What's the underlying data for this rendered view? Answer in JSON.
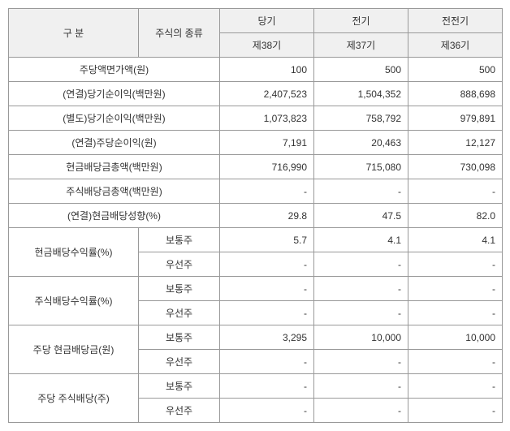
{
  "headers": {
    "gubun": "구  분",
    "stockType": "주식의 종류",
    "current": "당기",
    "prev": "전기",
    "prevprev": "전전기",
    "p38": "제38기",
    "p37": "제37기",
    "p36": "제36기"
  },
  "stockTypes": {
    "common": "보통주",
    "preferred": "우선주"
  },
  "rows": {
    "facevalue": {
      "label": "주당액면가액(원)",
      "v": [
        "100",
        "500",
        "500"
      ]
    },
    "consolNetIncome": {
      "label": "(연결)당기순이익(백만원)",
      "v": [
        "2,407,523",
        "1,504,352",
        "888,698"
      ]
    },
    "sepNetIncome": {
      "label": "(별도)당기순이익(백만원)",
      "v": [
        "1,073,823",
        "758,792",
        "979,891"
      ]
    },
    "eps": {
      "label": "(연결)주당순이익(원)",
      "v": [
        "7,191",
        "20,463",
        "12,127"
      ]
    },
    "cashDivTotal": {
      "label": "현금배당금총액(백만원)",
      "v": [
        "716,990",
        "715,080",
        "730,098"
      ]
    },
    "stockDivTotal": {
      "label": "주식배당금총액(백만원)",
      "v": [
        "-",
        "-",
        "-"
      ]
    },
    "payoutRatio": {
      "label": "(연결)현금배당성향(%)",
      "v": [
        "29.8",
        "47.5",
        "82.0"
      ]
    },
    "cashDivYield": {
      "label": "현금배당수익률(%)",
      "common": [
        "5.7",
        "4.1",
        "4.1"
      ],
      "preferred": [
        "-",
        "-",
        "-"
      ]
    },
    "stockDivYield": {
      "label": "주식배당수익률(%)",
      "common": [
        "-",
        "-",
        "-"
      ],
      "preferred": [
        "-",
        "-",
        "-"
      ]
    },
    "cashDivPerShare": {
      "label": "주당 현금배당금(원)",
      "common": [
        "3,295",
        "10,000",
        "10,000"
      ],
      "preferred": [
        "-",
        "-",
        "-"
      ]
    },
    "stockDivPerShare": {
      "label": "주당 주식배당(주)",
      "common": [
        "-",
        "-",
        "-"
      ],
      "preferred": [
        "-",
        "-",
        "-"
      ]
    }
  }
}
